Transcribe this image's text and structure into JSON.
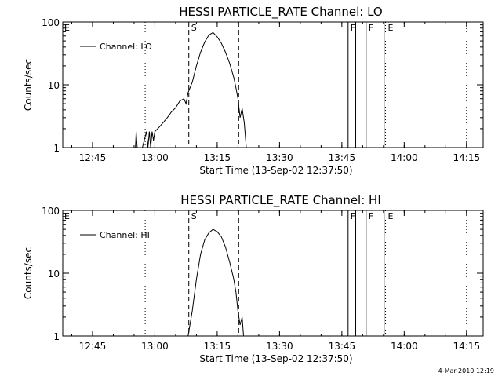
{
  "chart_data": [
    {
      "type": "line",
      "title": "HESSI PARTICLE_RATE Channel: LO",
      "xlabel": "Start Time (13-Sep-02 12:37:50)",
      "ylabel": "Counts/sec",
      "yscale": "log",
      "ylim": [
        1,
        100
      ],
      "xlim": [
        "12:37:50",
        "14:19:00"
      ],
      "x_ticks": [
        "12:45",
        "13:00",
        "13:15",
        "13:30",
        "13:45",
        "14:00",
        "14:15"
      ],
      "y_ticks": [
        "1",
        "10",
        "100"
      ],
      "legend": {
        "label": "Channel: LO",
        "placement": "top-left"
      },
      "vlines": [
        {
          "x": "12:57:40",
          "style": "dotted",
          "label": ""
        },
        {
          "x": "14:15:00",
          "style": "dotted",
          "label": ""
        },
        {
          "x": "13:08:10",
          "style": "dashed",
          "label": "S"
        },
        {
          "x": "13:20:10",
          "style": "dashed",
          "label": ""
        },
        {
          "x": "13:46:30",
          "style": "solid",
          "label": "F"
        },
        {
          "x": "13:48:20",
          "style": "solid",
          "label": ""
        },
        {
          "x": "13:50:50",
          "style": "solid",
          "label": "F"
        },
        {
          "x": "13:55:10",
          "style": "solid",
          "label": ""
        },
        {
          "x": "13:55:30",
          "style": "dotted",
          "label": "E"
        }
      ],
      "corner_labels": [
        "E"
      ],
      "series": [
        {
          "name": "Channel: LO",
          "points": [
            [
              "12:55:20",
              1
            ],
            [
              "12:55:30",
              1.8
            ],
            [
              "12:55:45",
              1
            ],
            [
              "12:57:00",
              1
            ],
            [
              "12:58:00",
              1.8
            ],
            [
              "12:58:20",
              1
            ],
            [
              "12:58:40",
              1.8
            ],
            [
              "12:59:00",
              1
            ],
            [
              "12:59:20",
              1.8
            ],
            [
              "12:59:40",
              1.3
            ],
            [
              "13:00:00",
              1.8
            ],
            [
              "13:01:00",
              2.1
            ],
            [
              "13:02:00",
              2.5
            ],
            [
              "13:03:00",
              3
            ],
            [
              "13:04:00",
              3.7
            ],
            [
              "13:05:00",
              4.3
            ],
            [
              "13:06:00",
              5.5
            ],
            [
              "13:07:00",
              6
            ],
            [
              "13:07:30",
              5
            ],
            [
              "13:08:00",
              7.5
            ],
            [
              "13:09:00",
              11
            ],
            [
              "13:10:00",
              20
            ],
            [
              "13:11:00",
              33
            ],
            [
              "13:12:00",
              48
            ],
            [
              "13:13:00",
              62
            ],
            [
              "13:14:00",
              68
            ],
            [
              "13:15:00",
              58
            ],
            [
              "13:16:00",
              46
            ],
            [
              "13:17:00",
              33
            ],
            [
              "13:18:00",
              22
            ],
            [
              "13:19:00",
              13
            ],
            [
              "13:19:30",
              9
            ],
            [
              "13:20:00",
              6
            ],
            [
              "13:20:30",
              3
            ],
            [
              "13:21:00",
              4.2
            ],
            [
              "13:21:30",
              2.5
            ],
            [
              "13:22:00",
              1
            ]
          ]
        }
      ]
    },
    {
      "type": "line",
      "title": "HESSI PARTICLE_RATE Channel: HI",
      "xlabel": "Start Time (13-Sep-02 12:37:50)",
      "ylabel": "Counts/sec",
      "yscale": "log",
      "ylim": [
        1,
        100
      ],
      "xlim": [
        "12:37:50",
        "14:19:00"
      ],
      "x_ticks": [
        "12:45",
        "13:00",
        "13:15",
        "13:30",
        "13:45",
        "14:00",
        "14:15"
      ],
      "y_ticks": [
        "1",
        "10",
        "100"
      ],
      "legend": {
        "label": "Channel: HI",
        "placement": "top-left"
      },
      "vlines": [
        {
          "x": "12:57:40",
          "style": "dotted",
          "label": ""
        },
        {
          "x": "14:15:00",
          "style": "dotted",
          "label": ""
        },
        {
          "x": "13:08:10",
          "style": "dashed",
          "label": "S"
        },
        {
          "x": "13:20:10",
          "style": "dashed",
          "label": ""
        },
        {
          "x": "13:46:30",
          "style": "solid",
          "label": "F"
        },
        {
          "x": "13:48:20",
          "style": "solid",
          "label": ""
        },
        {
          "x": "13:50:50",
          "style": "solid",
          "label": "F"
        },
        {
          "x": "13:55:10",
          "style": "solid",
          "label": ""
        },
        {
          "x": "13:55:30",
          "style": "dotted",
          "label": "E"
        }
      ],
      "corner_labels": [
        "E"
      ],
      "series": [
        {
          "name": "Channel: HI",
          "points": [
            [
              "13:08:00",
              1
            ],
            [
              "13:09:00",
              2.5
            ],
            [
              "13:10:00",
              8
            ],
            [
              "13:11:00",
              20
            ],
            [
              "13:12:00",
              34
            ],
            [
              "13:13:00",
              44
            ],
            [
              "13:14:00",
              50
            ],
            [
              "13:15:00",
              46
            ],
            [
              "13:16:00",
              38
            ],
            [
              "13:17:00",
              26
            ],
            [
              "13:18:00",
              15
            ],
            [
              "13:19:00",
              8
            ],
            [
              "13:19:30",
              5
            ],
            [
              "13:20:00",
              2.5
            ],
            [
              "13:20:30",
              1.5
            ],
            [
              "13:21:00",
              2
            ],
            [
              "13:21:20",
              1
            ]
          ]
        }
      ]
    }
  ],
  "footer": {
    "timestamp": "4-Mar-2010 12:19"
  }
}
